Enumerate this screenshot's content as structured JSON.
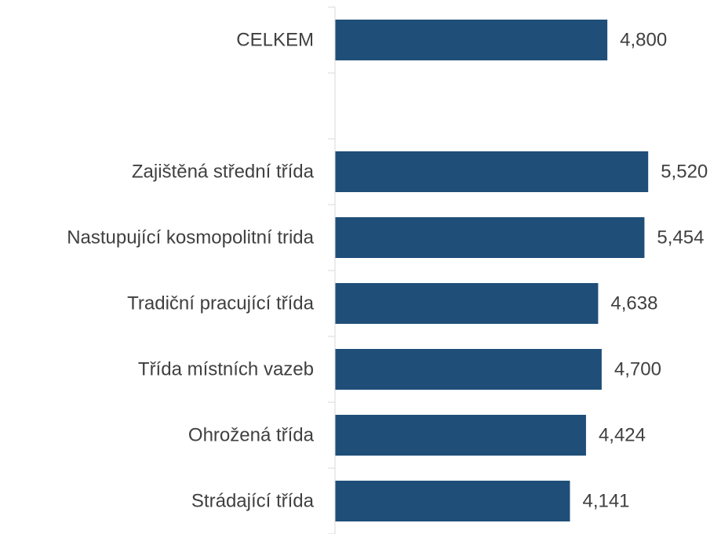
{
  "chart_data": {
    "type": "barh",
    "categories": [
      "CELKEM",
      null,
      "Zajištěná střední třída",
      "Nastupující kosmopolitní trida",
      "Tradiční pracující třída",
      "Třída místních vazeb",
      "Ohrožená třída",
      "Strádající třída"
    ],
    "values": [
      4800,
      null,
      5520,
      5454,
      4638,
      4700,
      4424,
      4141
    ],
    "value_labels": [
      "4,800",
      null,
      "5,520",
      "5,454",
      "4,638",
      "4,700",
      "4,424",
      "4,141"
    ],
    "color": "#1f4e79",
    "xlim": [
      0,
      6000
    ]
  }
}
